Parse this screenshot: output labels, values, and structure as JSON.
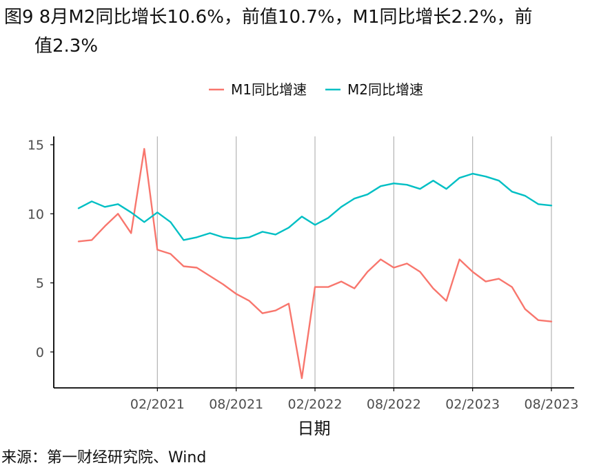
{
  "title": {
    "line1": "图9 8月M2同比增长10.6%，前值10.7%，M1同比增长2.2%，前",
    "line2": "值2.3%"
  },
  "source": "来源：第一财经研究院、Wind",
  "chart_data": {
    "type": "line",
    "xlabel": "日期",
    "ylabel": "",
    "x": [
      "2020-08",
      "2020-09",
      "2020-10",
      "2020-11",
      "2020-12",
      "2021-01",
      "2021-02",
      "2021-03",
      "2021-04",
      "2021-05",
      "2021-06",
      "2021-07",
      "2021-08",
      "2021-09",
      "2021-10",
      "2021-11",
      "2021-12",
      "2022-01",
      "2022-02",
      "2022-03",
      "2022-04",
      "2022-05",
      "2022-06",
      "2022-07",
      "2022-08",
      "2022-09",
      "2022-10",
      "2022-11",
      "2022-12",
      "2023-01",
      "2023-02",
      "2023-03",
      "2023-04",
      "2023-05",
      "2023-06",
      "2023-07",
      "2023-08"
    ],
    "x_ticks": [
      "02/2021",
      "08/2021",
      "02/2022",
      "08/2022",
      "02/2023",
      "08/2023"
    ],
    "x_tick_dates": [
      "2021-02",
      "2021-08",
      "2022-02",
      "2022-08",
      "2023-02",
      "2023-08"
    ],
    "y_ticks": [
      "0",
      "5",
      "10",
      "15"
    ],
    "ylim": [
      -2.6,
      15.6
    ],
    "grid": "vertical major gridlines only",
    "legend_position": "top",
    "series": [
      {
        "name": "M1同比增速",
        "color": "#F8766D",
        "values": [
          8.0,
          8.1,
          9.1,
          10.0,
          8.6,
          14.7,
          7.4,
          7.1,
          6.2,
          6.1,
          5.5,
          4.9,
          4.2,
          3.7,
          2.8,
          3.0,
          3.5,
          -1.9,
          4.7,
          4.7,
          5.1,
          4.6,
          5.8,
          6.7,
          6.1,
          6.4,
          5.8,
          4.6,
          3.7,
          6.7,
          5.8,
          5.1,
          5.3,
          4.7,
          3.1,
          2.3,
          2.2
        ]
      },
      {
        "name": "M2同比增速",
        "color": "#00BFC4",
        "values": [
          10.4,
          10.9,
          10.5,
          10.7,
          10.1,
          9.4,
          10.1,
          9.4,
          8.1,
          8.3,
          8.6,
          8.3,
          8.2,
          8.3,
          8.7,
          8.5,
          9.0,
          9.8,
          9.2,
          9.7,
          10.5,
          11.1,
          11.4,
          12.0,
          12.2,
          12.1,
          11.8,
          12.4,
          11.8,
          12.6,
          12.9,
          12.7,
          12.4,
          11.6,
          11.3,
          10.7,
          10.6
        ]
      }
    ]
  }
}
